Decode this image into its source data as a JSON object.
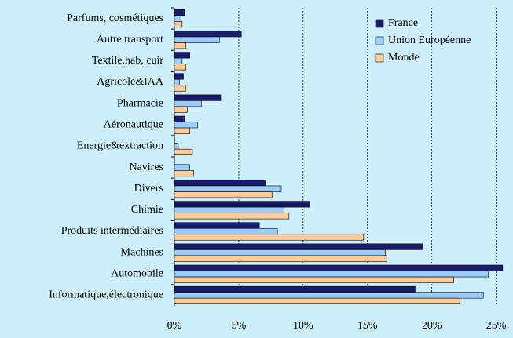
{
  "chart_data": {
    "type": "bar",
    "orientation": "horizontal",
    "categories": [
      "Parfums, cosmétiques",
      "Autre transport",
      "Textile,hab, cuir",
      "Agricole&IAA",
      "Pharmacie",
      "Aéronautique",
      "Energie&extraction",
      "Navires",
      "Divers",
      "Chimie",
      "Produits intermédiaires",
      "Machines",
      "Automobile",
      "Informatique,électronique"
    ],
    "series": [
      {
        "name": "France",
        "color": "#1b1b6b",
        "values": [
          0.8,
          5.2,
          1.2,
          0.7,
          3.6,
          0.8,
          0,
          0,
          7.1,
          10.5,
          6.6,
          19.3,
          25.5,
          18.7
        ]
      },
      {
        "name": "Union Européenne",
        "color": "#99ccff",
        "values": [
          0.5,
          3.5,
          0.6,
          0.4,
          2.1,
          1.8,
          0.3,
          1.2,
          8.3,
          8.5,
          8.0,
          16.4,
          24.4,
          24.0
        ]
      },
      {
        "name": "Monde",
        "color": "#ffcc99",
        "values": [
          0.6,
          0.9,
          0.9,
          0.9,
          1.0,
          1.2,
          1.4,
          1.5,
          7.6,
          8.9,
          14.7,
          16.5,
          21.7,
          22.2
        ]
      }
    ],
    "xlim": [
      0,
      26
    ],
    "xticks": [
      {
        "value": 0,
        "label": "0%"
      },
      {
        "value": 5,
        "label": "5%"
      },
      {
        "value": 10,
        "label": "10%"
      },
      {
        "value": 15,
        "label": "15%"
      },
      {
        "value": 20,
        "label": "20%"
      },
      {
        "value": 25,
        "label": "25%"
      }
    ],
    "grid": true,
    "legend": "top-right"
  }
}
